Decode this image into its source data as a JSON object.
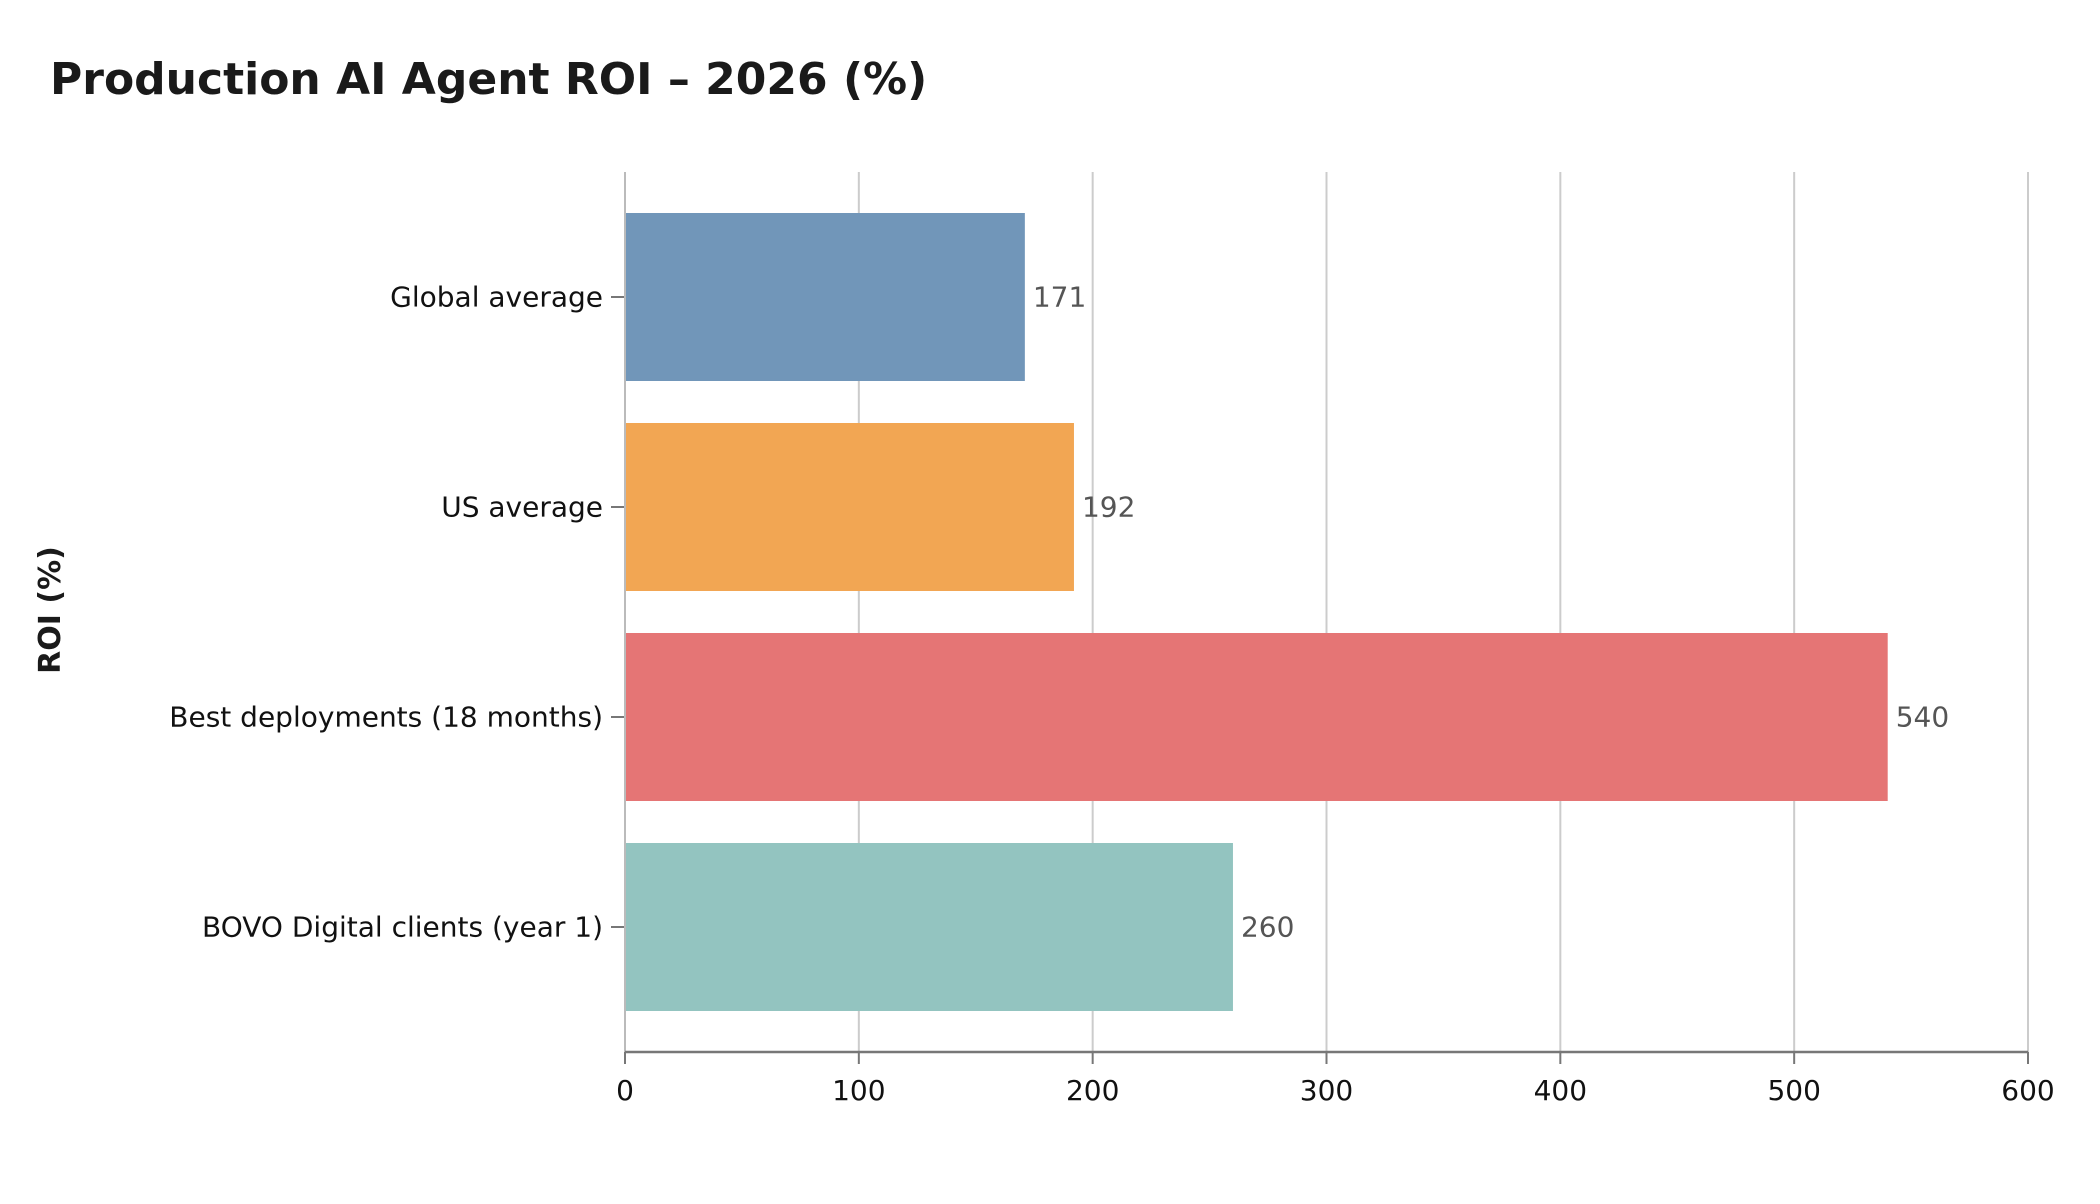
{
  "chart_data": {
    "type": "bar",
    "orientation": "horizontal",
    "title": "Production AI Agent ROI – 2026 (%)",
    "ylabel": "ROI (%)",
    "xlabel": "",
    "categories": [
      "Global average",
      "US average",
      "Best deployments (18 months)",
      "BOVO Digital clients (year 1)"
    ],
    "values": [
      171,
      192,
      540,
      260
    ],
    "data_labels": [
      "171",
      "192",
      "540",
      "260"
    ],
    "bar_colors": [
      "#7196b9",
      "#f2a653",
      "#e57575",
      "#93c4c0"
    ],
    "xlim": [
      0,
      600
    ],
    "x_ticks": [
      0,
      100,
      200,
      300,
      400,
      500,
      600
    ],
    "x_tick_labels": [
      "0",
      "100",
      "200",
      "300",
      "400",
      "500",
      "600"
    ],
    "grid": "vertical",
    "legend": "none"
  }
}
